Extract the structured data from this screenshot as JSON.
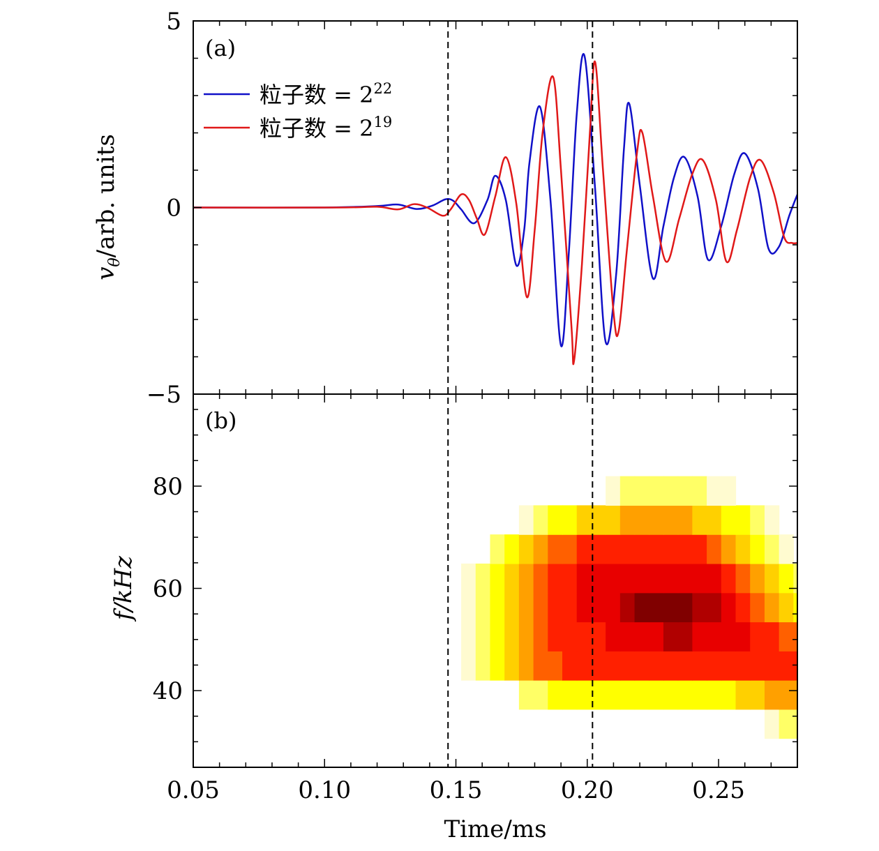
{
  "chart_data": [
    {
      "type": "line",
      "panel_label": "(a)",
      "ylabel_main": "v",
      "ylabel_sub": "θ",
      "ylabel_rest": "/arb. units",
      "xlim": [
        0.05,
        0.28
      ],
      "ylim": [
        -5,
        5
      ],
      "yticks": [
        {
          "value": 5,
          "label": "5"
        },
        {
          "value": 0,
          "label": "0"
        },
        {
          "value": -5,
          "label": "−5"
        }
      ],
      "yminor_step": 1,
      "legend_placement": "upper-left",
      "vlines": [
        0.147,
        0.202
      ],
      "series": [
        {
          "name": "粒子数 = 2",
          "exponent": "22",
          "color": "#1010c8",
          "points": [
            [
              0.05,
              0.0
            ],
            [
              0.1,
              0.0
            ],
            [
              0.12,
              0.04
            ],
            [
              0.128,
              0.08
            ],
            [
              0.135,
              -0.04
            ],
            [
              0.141,
              0.05
            ],
            [
              0.146,
              0.22
            ],
            [
              0.149,
              0.18
            ],
            [
              0.152,
              -0.05
            ],
            [
              0.157,
              -0.42
            ],
            [
              0.162,
              0.2
            ],
            [
              0.165,
              0.85
            ],
            [
              0.169,
              0.2
            ],
            [
              0.173,
              -1.55
            ],
            [
              0.176,
              -0.6
            ],
            [
              0.178,
              1.2
            ],
            [
              0.182,
              2.7
            ],
            [
              0.186,
              0.2
            ],
            [
              0.19,
              -3.7
            ],
            [
              0.193,
              -1.2
            ],
            [
              0.196,
              2.5
            ],
            [
              0.199,
              4.05
            ],
            [
              0.203,
              0.5
            ],
            [
              0.207,
              -3.6
            ],
            [
              0.211,
              -1.8
            ],
            [
              0.214,
              1.6
            ],
            [
              0.216,
              2.78
            ],
            [
              0.22,
              0.6
            ],
            [
              0.225,
              -1.9
            ],
            [
              0.229,
              -0.5
            ],
            [
              0.233,
              0.8
            ],
            [
              0.237,
              1.35
            ],
            [
              0.242,
              0.3
            ],
            [
              0.246,
              -1.4
            ],
            [
              0.251,
              -0.5
            ],
            [
              0.256,
              0.9
            ],
            [
              0.26,
              1.45
            ],
            [
              0.265,
              0.5
            ],
            [
              0.269,
              -1.1
            ],
            [
              0.273,
              -1.05
            ],
            [
              0.277,
              -0.2
            ],
            [
              0.28,
              0.35
            ]
          ]
        },
        {
          "name": "粒子数 = 2",
          "exponent": "19",
          "color": "#e01818",
          "points": [
            [
              0.05,
              0.0
            ],
            [
              0.105,
              0.0
            ],
            [
              0.12,
              0.02
            ],
            [
              0.128,
              -0.05
            ],
            [
              0.134,
              0.09
            ],
            [
              0.139,
              0.0
            ],
            [
              0.145,
              -0.22
            ],
            [
              0.148,
              -0.05
            ],
            [
              0.152,
              0.35
            ],
            [
              0.155,
              0.2
            ],
            [
              0.158,
              -0.3
            ],
            [
              0.161,
              -0.72
            ],
            [
              0.165,
              0.3
            ],
            [
              0.169,
              1.35
            ],
            [
              0.173,
              0.1
            ],
            [
              0.177,
              -2.4
            ],
            [
              0.18,
              -0.6
            ],
            [
              0.183,
              2.0
            ],
            [
              0.187,
              3.5
            ],
            [
              0.19,
              1.0
            ],
            [
              0.194,
              -3.2
            ],
            [
              0.195,
              -4.1
            ],
            [
              0.198,
              -1.5
            ],
            [
              0.201,
              2.0
            ],
            [
              0.203,
              3.9
            ],
            [
              0.206,
              1.0
            ],
            [
              0.21,
              -2.8
            ],
            [
              0.212,
              -3.3
            ],
            [
              0.215,
              -1.2
            ],
            [
              0.219,
              1.5
            ],
            [
              0.221,
              2.0
            ],
            [
              0.225,
              0.3
            ],
            [
              0.23,
              -1.45
            ],
            [
              0.235,
              -0.3
            ],
            [
              0.24,
              0.9
            ],
            [
              0.244,
              1.27
            ],
            [
              0.249,
              0.2
            ],
            [
              0.253,
              -1.45
            ],
            [
              0.257,
              -0.6
            ],
            [
              0.262,
              0.8
            ],
            [
              0.266,
              1.27
            ],
            [
              0.271,
              0.4
            ],
            [
              0.275,
              -0.8
            ],
            [
              0.278,
              -0.95
            ],
            [
              0.28,
              -0.95
            ]
          ]
        }
      ]
    },
    {
      "type": "heatmap",
      "panel_label": "(b)",
      "ylabel": "f/kHz",
      "xlabel": "Time/ms",
      "xlim": [
        0.05,
        0.28
      ],
      "ylim": [
        25,
        98
      ],
      "xticks": [
        {
          "value": 0.05,
          "label": "0.05"
        },
        {
          "value": 0.1,
          "label": "0.10"
        },
        {
          "value": 0.15,
          "label": "0.15"
        },
        {
          "value": 0.2,
          "label": "0.20"
        },
        {
          "value": 0.25,
          "label": "0.25"
        }
      ],
      "yticks": [
        {
          "value": 40,
          "label": "40"
        },
        {
          "value": 60,
          "label": "60"
        },
        {
          "value": 80,
          "label": "80"
        }
      ],
      "yminor_step": 5,
      "xminor_step": 0.01,
      "vlines": [
        0.147,
        0.202
      ],
      "cell_time_width": 0.0055,
      "cell_freq_height": 5.7,
      "time_start": 0.1465,
      "freq_rows": [
        33.5,
        39.2,
        44.9,
        50.6,
        56.3,
        62.0,
        67.7,
        73.4,
        79.1
      ],
      "colormap": [
        "#ffffff",
        "#fffbd0",
        "#ffff66",
        "#ffff00",
        "#ffd000",
        "#ffa000",
        "#ff6000",
        "#ff2000",
        "#e80000",
        "#b00000",
        "#800000"
      ],
      "intensity_rows": [
        [
          0,
          0,
          0,
          0,
          0,
          0,
          0,
          0,
          0,
          0,
          0,
          0,
          0,
          0,
          0,
          0,
          0,
          0,
          0,
          0,
          0,
          0,
          1,
          2,
          2,
          2,
          2,
          3,
          3,
          3,
          3,
          3,
          3,
          3,
          3
        ],
        [
          0,
          0,
          0,
          0,
          0,
          2,
          2,
          3,
          3,
          3,
          3,
          3,
          3,
          3,
          3,
          3,
          3,
          3,
          3,
          3,
          4,
          4,
          5,
          5,
          5,
          5,
          5,
          5,
          6,
          6,
          6,
          6,
          6,
          6,
          6
        ],
        [
          0,
          1,
          2,
          3,
          4,
          5,
          6,
          6,
          7,
          7,
          7,
          7,
          7,
          7,
          7,
          7,
          7,
          7,
          7,
          7,
          7,
          7,
          7,
          7,
          7,
          7,
          7,
          7,
          7,
          6,
          6,
          6,
          6,
          6,
          6
        ],
        [
          0,
          1,
          2,
          3,
          4,
          5,
          6,
          7,
          7,
          7,
          7,
          8,
          8,
          8,
          8,
          9,
          9,
          8,
          8,
          8,
          8,
          7,
          7,
          6,
          6,
          6,
          5,
          5,
          4,
          4,
          3,
          3,
          3,
          3,
          3
        ],
        [
          0,
          1,
          2,
          3,
          4,
          5,
          6,
          7,
          7,
          8,
          8,
          8,
          9,
          10,
          10,
          10,
          10,
          9,
          9,
          8,
          7,
          6,
          5,
          4,
          3,
          3,
          2,
          2,
          1,
          1,
          0,
          0,
          0,
          0,
          0
        ],
        [
          0,
          1,
          2,
          3,
          4,
          5,
          6,
          7,
          7,
          8,
          8,
          8,
          8,
          8,
          8,
          8,
          8,
          8,
          8,
          7,
          6,
          5,
          4,
          3,
          2,
          1,
          0,
          0,
          0,
          0,
          0,
          0,
          0,
          0,
          0
        ],
        [
          0,
          0,
          0,
          2,
          3,
          4,
          5,
          6,
          6,
          7,
          7,
          7,
          7,
          7,
          7,
          7,
          7,
          7,
          6,
          5,
          4,
          3,
          2,
          1,
          0,
          0,
          0,
          0,
          0,
          0,
          0,
          0,
          0,
          0,
          0
        ],
        [
          0,
          0,
          0,
          0,
          0,
          1,
          2,
          3,
          3,
          4,
          4,
          4,
          5,
          5,
          5,
          5,
          5,
          4,
          4,
          3,
          3,
          2,
          1,
          0,
          0,
          0,
          0,
          0,
          0,
          0,
          0,
          0,
          0,
          0,
          0
        ],
        [
          0,
          0,
          0,
          0,
          0,
          0,
          0,
          0,
          0,
          0,
          0,
          1,
          2,
          2,
          2,
          2,
          2,
          2,
          1,
          1,
          0,
          0,
          0,
          0,
          0,
          0,
          0,
          0,
          0,
          0,
          0,
          0,
          0,
          0,
          0
        ]
      ]
    }
  ]
}
